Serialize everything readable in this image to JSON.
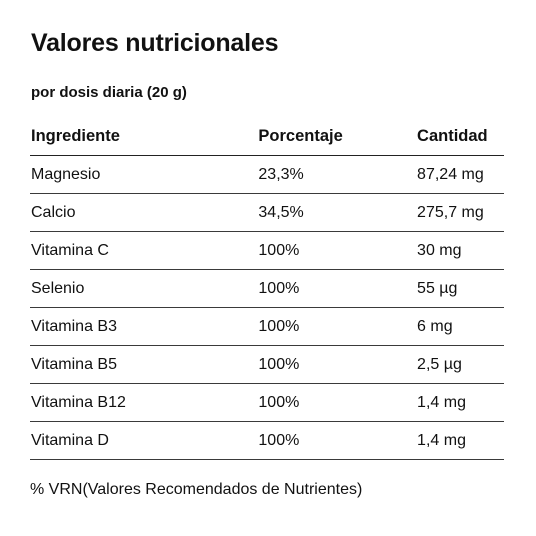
{
  "title": "Valores nutricionales",
  "subtitle": "por dosis diaria (20 g)",
  "table": {
    "headers": [
      "Ingrediente",
      "Porcentaje",
      "Cantidad"
    ],
    "rows": [
      [
        "Magnesio",
        "23,3%",
        "87,24 mg"
      ],
      [
        "Calcio",
        "34,5%",
        "275,7 mg"
      ],
      [
        "Vitamina C",
        "100%",
        "30 mg"
      ],
      [
        "Selenio",
        "100%",
        "55 µg"
      ],
      [
        "Vitamina B3",
        "100%",
        "6 mg"
      ],
      [
        "Vitamina B5",
        "100%",
        "2,5 µg"
      ],
      [
        "Vitamina B12",
        "100%",
        "1,4 mg"
      ],
      [
        "Vitamina D",
        "100%",
        "1,4 mg"
      ]
    ]
  },
  "footnote": "% VRN(Valores Recomendados de Nutrientes)"
}
